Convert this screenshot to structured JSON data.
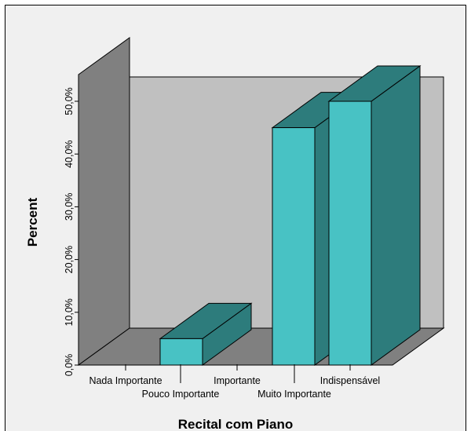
{
  "chart_data": {
    "type": "bar",
    "title": "",
    "xlabel": "Recital com Piano",
    "ylabel": "Percent",
    "categories": [
      "Nada Importante",
      "Pouco Importante",
      "Importante",
      "Muito Importante",
      "Indispensável"
    ],
    "values": [
      0,
      5.0,
      0,
      45.0,
      50.0
    ],
    "ylim": [
      0,
      50
    ],
    "yticks": [
      "0,0%",
      "10,0%",
      "20,0%",
      "30,0%",
      "40,0%",
      "50,0%"
    ],
    "style": "3d",
    "grid": false,
    "legend": "none",
    "colors": {
      "bar_front": "#48c2c4",
      "bar_top": "#2d7c7c",
      "bar_side": "#2d7c7c",
      "back_wall": "#c0c0c0",
      "side_wall": "#808080",
      "floor": "#808080",
      "frame_bg": "#f0f0f0"
    }
  }
}
